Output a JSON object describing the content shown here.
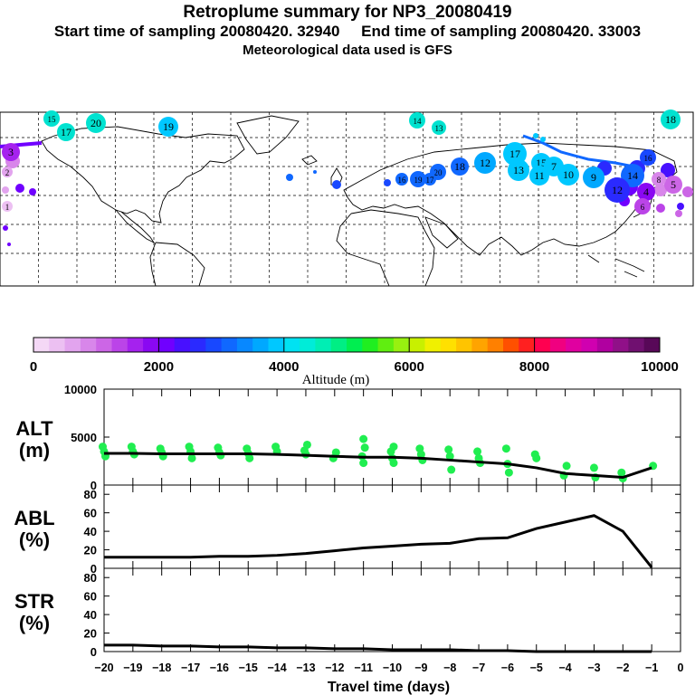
{
  "title": "Retroplume summary for NP3_20080419",
  "subtitle_start": "Start time of sampling 20080420. 32940",
  "subtitle_end": "End time of sampling 20080420. 33003",
  "subtitle_met": "Meteorological data used is GFS",
  "colorbar": {
    "label": "Altitude (m)",
    "ticks": [
      "0",
      "2000",
      "4000",
      "6000",
      "8000",
      "10000"
    ],
    "colors": [
      "#f4d8f6",
      "#ecc0f2",
      "#e2a4ee",
      "#d886ea",
      "#cc66e6",
      "#bb44e8",
      "#a522ee",
      "#8a08f2",
      "#7000ff",
      "#4810ff",
      "#2a2aff",
      "#1848ff",
      "#1068ff",
      "#0888ff",
      "#00a8ff",
      "#00c8ff",
      "#00e2f2",
      "#00ecd8",
      "#00eeb4",
      "#00ee84",
      "#00ee50",
      "#20ee20",
      "#60ee10",
      "#98f010",
      "#c8f000",
      "#f0f000",
      "#ffe000",
      "#ffc400",
      "#ffa400",
      "#ff8000",
      "#ff5000",
      "#ff2020",
      "#ff0050",
      "#f00080",
      "#e000a0",
      "#d000b0",
      "#b000a0",
      "#901088",
      "#701070",
      "#580858"
    ]
  },
  "map": {
    "labels": [
      {
        "text": "15",
        "color": "#00e2d0"
      },
      {
        "text": "17",
        "color": "#00e2d0"
      },
      {
        "text": "20",
        "color": "#00e2d0"
      },
      {
        "text": "19",
        "color": "#00c8ff"
      },
      {
        "text": "14",
        "color": "#00e2d0"
      },
      {
        "text": "13",
        "color": "#00e2d0"
      },
      {
        "text": "18",
        "color": "#00e2d0"
      },
      {
        "text": "20",
        "color": "#1068ff"
      },
      {
        "text": "18",
        "color": "#1068ff"
      },
      {
        "text": "12",
        "color": "#00a8ff"
      },
      {
        "text": "17",
        "color": "#00c8ff"
      },
      {
        "text": "13",
        "color": "#00c8ff"
      },
      {
        "text": "15",
        "color": "#00c8ff"
      },
      {
        "text": "7",
        "color": "#00c8ff"
      },
      {
        "text": "11",
        "color": "#00c8ff"
      },
      {
        "text": "10",
        "color": "#00c8ff"
      },
      {
        "text": "9",
        "color": "#00a8ff"
      },
      {
        "text": "14",
        "color": "#1068ff"
      },
      {
        "text": "16",
        "color": "#1848ff"
      },
      {
        "text": "12",
        "color": "#2a2aff"
      },
      {
        "text": "4",
        "color": "#8a08f2"
      },
      {
        "text": "5",
        "color": "#cc66e6"
      },
      {
        "text": "6",
        "color": "#bb44e8"
      },
      {
        "text": "8",
        "color": "#d886ea"
      },
      {
        "text": "3",
        "color": "#a522ee"
      },
      {
        "text": "2",
        "color": "#e2a4ee"
      },
      {
        "text": "1",
        "color": "#ecc0f2"
      },
      {
        "text": "19",
        "color": "#1068ff"
      },
      {
        "text": "17",
        "color": "#1068ff"
      },
      {
        "text": "16",
        "color": "#1068ff"
      }
    ]
  },
  "chart_data": [
    {
      "type": "scatter",
      "panel": "ALT",
      "ylabel_line1": "ALT",
      "ylabel_line2": "(m)",
      "ylim": [
        0,
        10000
      ],
      "yticks": [
        "0",
        "5000",
        "10000"
      ],
      "xlim": [
        -20,
        0
      ],
      "point_color": "#20ee50",
      "median_x": [
        -20,
        -19,
        -18,
        -17,
        -16,
        -15,
        -14,
        -13,
        -12,
        -11,
        -10,
        -9,
        -8,
        -7,
        -6,
        -5,
        -4,
        -3,
        -2,
        -1
      ],
      "median_y": [
        3300,
        3300,
        3250,
        3250,
        3250,
        3250,
        3200,
        3100,
        3000,
        2900,
        2900,
        2800,
        2600,
        2400,
        2200,
        1800,
        1200,
        1000,
        800,
        1800
      ],
      "points_x": [
        -20,
        -20,
        -20,
        -19,
        -19,
        -19,
        -18,
        -18,
        -18,
        -17,
        -17,
        -17,
        -16,
        -16,
        -16,
        -15,
        -15,
        -15,
        -14,
        -14,
        -13,
        -13,
        -13,
        -12,
        -12,
        -11,
        -11,
        -11,
        -11,
        -10,
        -10,
        -10,
        -10,
        -9,
        -9,
        -9,
        -8,
        -8,
        -8,
        -7,
        -7,
        -7,
        -6,
        -6,
        -6,
        -5,
        -5,
        -4,
        -4,
        -3,
        -3,
        -2,
        -2,
        -1
      ],
      "points_y": [
        4000,
        3500,
        3000,
        4000,
        3500,
        3200,
        3800,
        3400,
        3000,
        4000,
        3500,
        2800,
        3900,
        3400,
        3100,
        3800,
        3300,
        2800,
        4000,
        3500,
        4200,
        3600,
        3200,
        3400,
        2800,
        4800,
        3900,
        3000,
        2300,
        4000,
        3500,
        2800,
        2300,
        3800,
        3200,
        2600,
        3700,
        3000,
        1600,
        3500,
        2800,
        2300,
        3800,
        2200,
        1300,
        3200,
        2800,
        2000,
        1000,
        1800,
        800,
        1300,
        700,
        2000
      ]
    },
    {
      "type": "line",
      "panel": "ABL",
      "ylabel_line1": "ABL",
      "ylabel_line2": "(%)",
      "ylim": [
        0,
        90
      ],
      "yticks": [
        "0",
        "20",
        "40",
        "60",
        "80"
      ],
      "xlim": [
        -20,
        0
      ],
      "x": [
        -20,
        -19,
        -18,
        -17,
        -16,
        -15,
        -14,
        -13,
        -12,
        -11,
        -10,
        -9,
        -8,
        -7,
        -6,
        -5,
        -4,
        -3,
        -2,
        -1
      ],
      "values": [
        12,
        12,
        12,
        12,
        13,
        13,
        14,
        16,
        19,
        22,
        24,
        26,
        27,
        32,
        33,
        43,
        50,
        57,
        40,
        1
      ]
    },
    {
      "type": "line",
      "panel": "STR",
      "ylabel_line1": "STR",
      "ylabel_line2": "(%)",
      "ylim": [
        0,
        90
      ],
      "yticks": [
        "0",
        "20",
        "40",
        "60",
        "80"
      ],
      "xlim": [
        -20,
        0
      ],
      "xlabel": "Travel time (days)",
      "xticks": [
        "−20",
        "−19",
        "−18",
        "−17",
        "−16",
        "−15",
        "−14",
        "−13",
        "−12",
        "−11",
        "−10",
        "−9",
        "−8",
        "−7",
        "−6",
        "−5",
        "−4",
        "−3",
        "−2",
        "−1",
        "0"
      ],
      "x": [
        -20,
        -19,
        -18,
        -17,
        -16,
        -15,
        -14,
        -13,
        -12,
        -11,
        -10,
        -9,
        -8,
        -7,
        -6,
        -5,
        -4,
        -3,
        -2,
        -1
      ],
      "values": [
        7,
        7,
        6,
        6,
        5,
        5,
        4,
        4,
        3,
        3,
        2,
        2,
        2,
        1,
        1,
        0,
        0,
        0,
        0,
        0
      ]
    }
  ]
}
